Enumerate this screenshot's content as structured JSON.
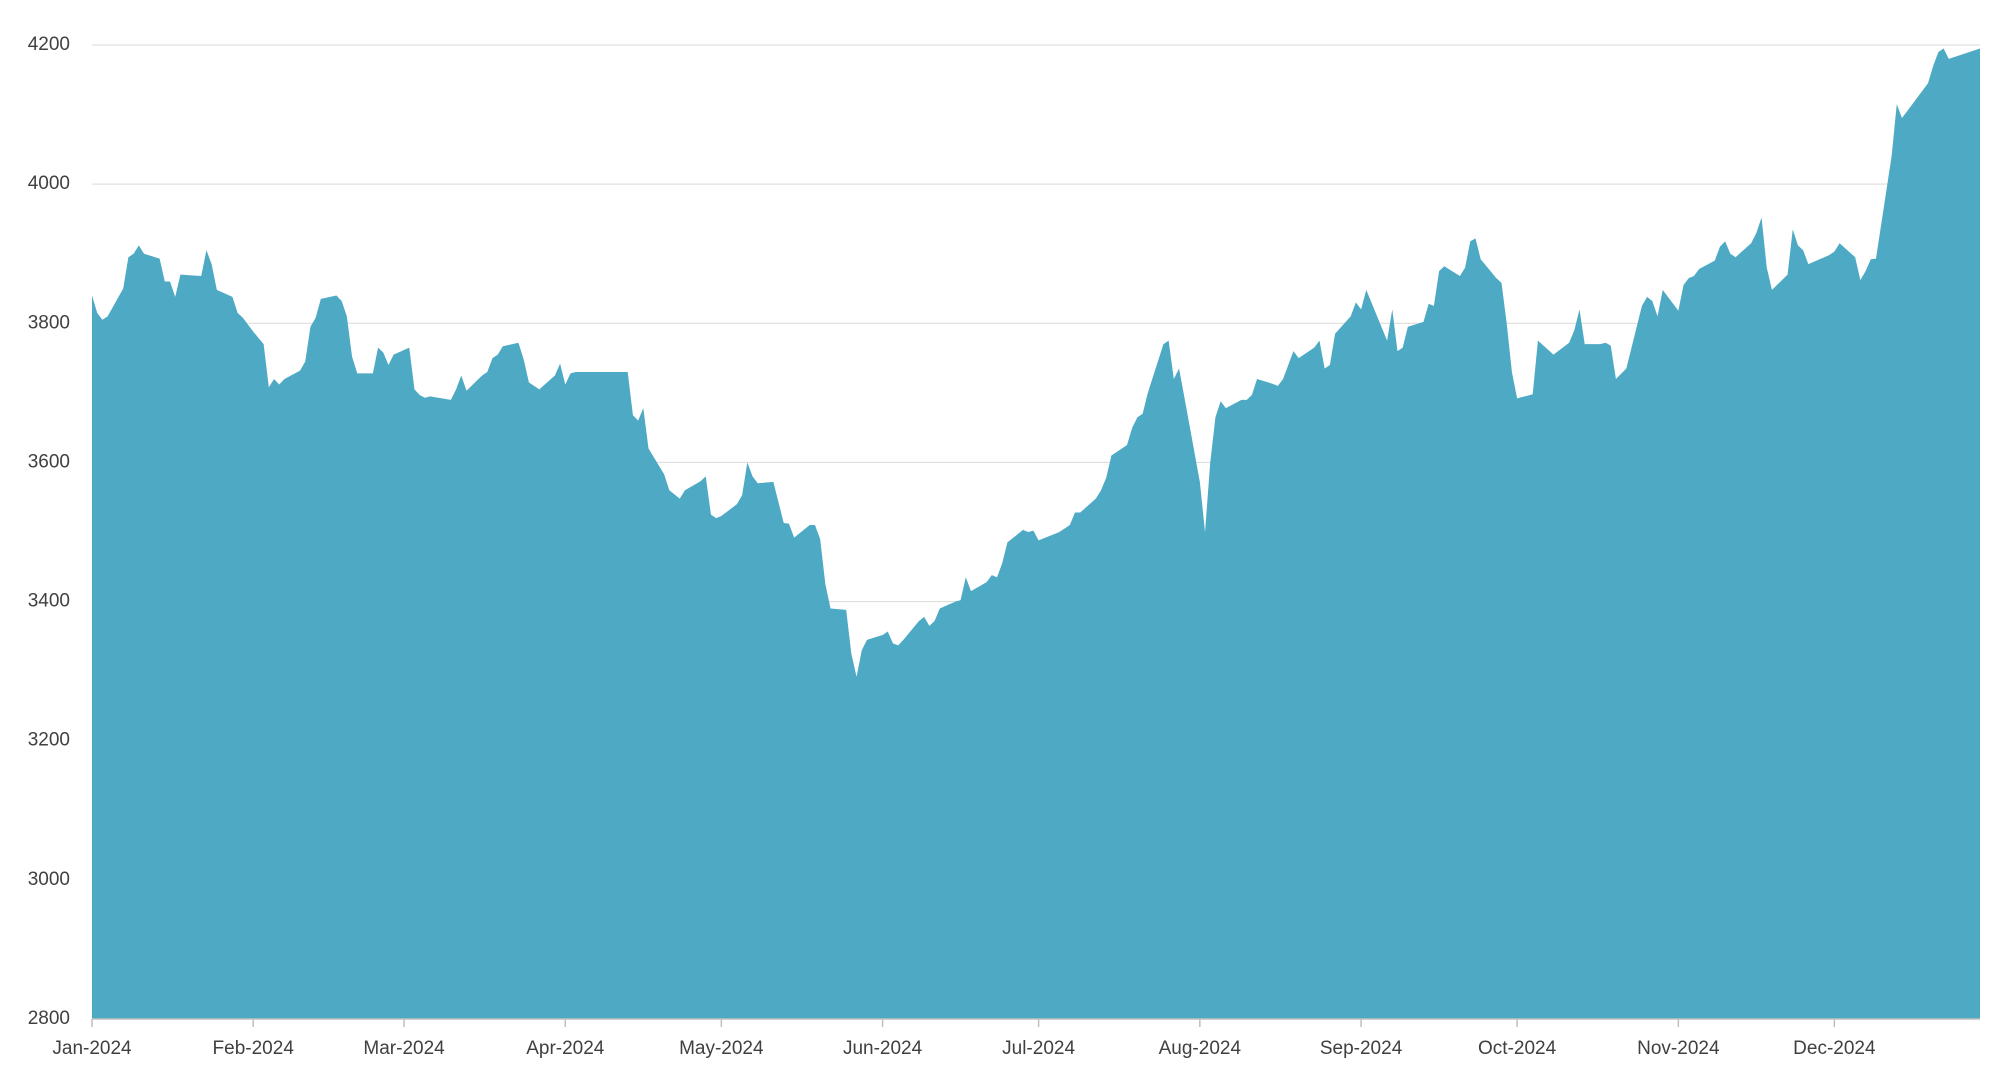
{
  "chart_data": {
    "type": "area",
    "color": "#4eaac4",
    "grid": true,
    "x": [
      0,
      1,
      2,
      3,
      6,
      7,
      8,
      9,
      10,
      13,
      14,
      15,
      16,
      17,
      21,
      22,
      23,
      24,
      27,
      28,
      29,
      31,
      33,
      34,
      35,
      36,
      37,
      40,
      41,
      42,
      43,
      44,
      47,
      48,
      49,
      50,
      51,
      54,
      55,
      56,
      57,
      58,
      61,
      62,
      63,
      64,
      65,
      69,
      70,
      71,
      72,
      75,
      76,
      77,
      78,
      79,
      82,
      83,
      84,
      85,
      86,
      89,
      90,
      91,
      92,
      93,
      103,
      104,
      105,
      106,
      107,
      110,
      111,
      113,
      114,
      117,
      118,
      119,
      120,
      121,
      124,
      125,
      126,
      127,
      128,
      131,
      133,
      134,
      135,
      138,
      139,
      140,
      141,
      142,
      145,
      146,
      147,
      148,
      149,
      152,
      153,
      154,
      155,
      156,
      159,
      160,
      161,
      162,
      163,
      166,
      167,
      168,
      169,
      172,
      173,
      174,
      175,
      176,
      179,
      180,
      181,
      182,
      186,
      187,
      188,
      189,
      190,
      193,
      194,
      195,
      196,
      199,
      200,
      201,
      202,
      203,
      206,
      207,
      208,
      209,
      210,
      213,
      214,
      215,
      216,
      217,
      218,
      221,
      222,
      223,
      224,
      227,
      228,
      229,
      230,
      231,
      232,
      235,
      236,
      237,
      238,
      239,
      242,
      243,
      244,
      245,
      249,
      250,
      251,
      252,
      253,
      256,
      257,
      258,
      259,
      260,
      263,
      264,
      265,
      266,
      267,
      270,
      271,
      272,
      273,
      274,
      277,
      278,
      281,
      284,
      285,
      286,
      287,
      290,
      291,
      292,
      293,
      295,
      298,
      299,
      300,
      301,
      302,
      305,
      306,
      307,
      308,
      309,
      312,
      313,
      314,
      315,
      316,
      319,
      320,
      321,
      322,
      323,
      326,
      327,
      328,
      329,
      330,
      334,
      335,
      336,
      339,
      340,
      341,
      342,
      343,
      346,
      347,
      348,
      349,
      353,
      354,
      355,
      356,
      357,
      363
    ],
    "values": [
      3840,
      3815,
      3805,
      3810,
      3850,
      3895,
      3900,
      3912,
      3900,
      3893,
      3860,
      3860,
      3838,
      3870,
      3868,
      3905,
      3885,
      3848,
      3838,
      3815,
      3808,
      3788,
      3770,
      3708,
      3720,
      3712,
      3720,
      3732,
      3745,
      3795,
      3808,
      3835,
      3840,
      3832,
      3810,
      3752,
      3728,
      3728,
      3765,
      3758,
      3740,
      3755,
      3765,
      3705,
      3697,
      3693,
      3695,
      3690,
      3705,
      3725,
      3703,
      3725,
      3730,
      3750,
      3755,
      3767,
      3772,
      3748,
      3715,
      3710,
      3705,
      3725,
      3742,
      3712,
      3728,
      3730,
      3730,
      3668,
      3660,
      3678,
      3620,
      3583,
      3560,
      3548,
      3560,
      3573,
      3580,
      3525,
      3520,
      3523,
      3540,
      3553,
      3600,
      3580,
      3570,
      3572,
      3513,
      3512,
      3492,
      3510,
      3510,
      3490,
      3425,
      3390,
      3388,
      3325,
      3292,
      3330,
      3345,
      3352,
      3357,
      3340,
      3337,
      3345,
      3372,
      3378,
      3365,
      3372,
      3390,
      3400,
      3402,
      3435,
      3415,
      3428,
      3438,
      3435,
      3455,
      3485,
      3503,
      3500,
      3502,
      3488,
      3500,
      3505,
      3510,
      3528,
      3528,
      3548,
      3560,
      3578,
      3610,
      3625,
      3650,
      3665,
      3670,
      3700,
      3770,
      3775,
      3720,
      3735,
      3695,
      3572,
      3500,
      3600,
      3665,
      3688,
      3678,
      3690,
      3690,
      3697,
      3720,
      3713,
      3710,
      3720,
      3740,
      3760,
      3750,
      3765,
      3775,
      3735,
      3740,
      3785,
      3810,
      3830,
      3820,
      3848,
      3775,
      3820,
      3760,
      3765,
      3795,
      3802,
      3828,
      3825,
      3875,
      3882,
      3868,
      3880,
      3918,
      3922,
      3892,
      3865,
      3858,
      3800,
      3730,
      3692,
      3698,
      3775,
      3755,
      3772,
      3790,
      3820,
      3770,
      3770,
      3772,
      3768,
      3720,
      3735,
      3825,
      3838,
      3832,
      3810,
      3848,
      3818,
      3855,
      3865,
      3868,
      3878,
      3890,
      3910,
      3918,
      3900,
      3895,
      3915,
      3930,
      3952,
      3880,
      3848,
      3870,
      3935,
      3912,
      3905,
      3885,
      3898,
      3903,
      3915,
      3895,
      3862,
      3875,
      3892,
      3893,
      4040,
      4115,
      4095,
      4105,
      4145,
      4170,
      4190,
      4195,
      4180,
      4195
    ],
    "xlim": [
      0,
      363
    ],
    "xticks": [
      {
        "value": 0,
        "label": "Jan-2024"
      },
      {
        "value": 31,
        "label": "Feb-2024"
      },
      {
        "value": 60,
        "label": "Mar-2024"
      },
      {
        "value": 91,
        "label": "Apr-2024"
      },
      {
        "value": 121,
        "label": "May-2024"
      },
      {
        "value": 152,
        "label": "Jun-2024"
      },
      {
        "value": 182,
        "label": "Jul-2024"
      },
      {
        "value": 213,
        "label": "Aug-2024"
      },
      {
        "value": 244,
        "label": "Sep-2024"
      },
      {
        "value": 274,
        "label": "Oct-2024"
      },
      {
        "value": 305,
        "label": "Nov-2024"
      },
      {
        "value": 335,
        "label": "Dec-2024"
      }
    ],
    "ylim": [
      2800,
      4200
    ],
    "yticks": [
      2800,
      3000,
      3200,
      3400,
      3600,
      3800,
      4000,
      4200
    ]
  }
}
